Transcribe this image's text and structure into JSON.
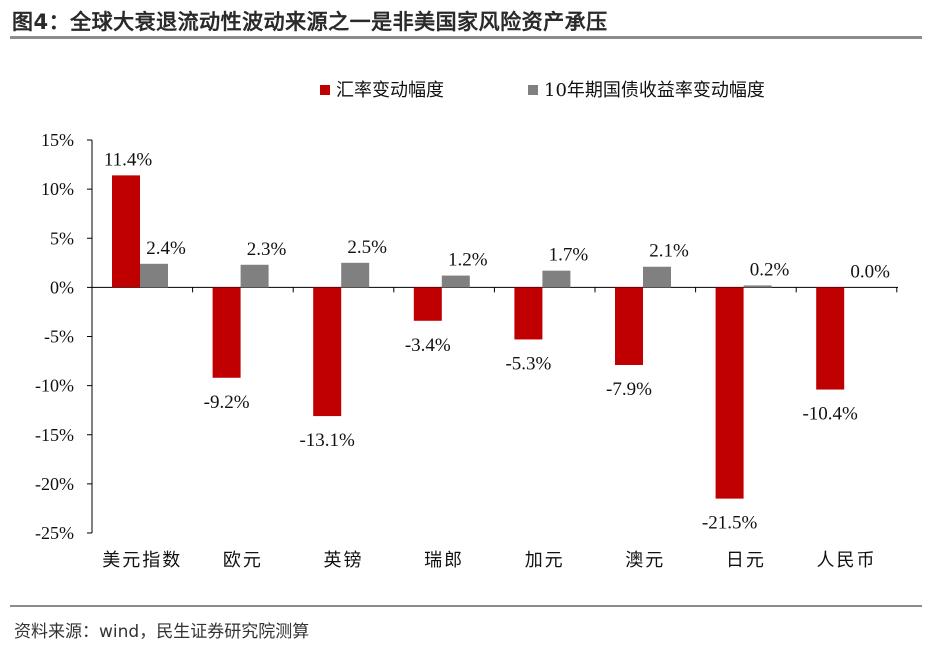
{
  "header": {
    "figure_title": "图4：全球大衰退流动性波动来源之一是非美国家风险资产承压"
  },
  "footer": {
    "source": "资料来源：wind，民生证券研究院测算"
  },
  "chart_data": {
    "type": "bar",
    "categories": [
      "美元指数",
      "欧元",
      "英镑",
      "瑞郎",
      "加元",
      "澳元",
      "日元",
      "人民币"
    ],
    "series": [
      {
        "name": "汇率变动幅度",
        "color": "#c00000",
        "values": [
          11.4,
          -9.2,
          -13.1,
          -3.4,
          -5.3,
          -7.9,
          -21.5,
          -10.4
        ],
        "labels": [
          "11.4%",
          "-9.2%",
          "-13.1%",
          "-3.4%",
          "-5.3%",
          "-7.9%",
          "-21.5%",
          "-10.4%"
        ]
      },
      {
        "name": "10年期国债收益率变动幅度",
        "color": "#808080",
        "values": [
          2.4,
          2.3,
          2.5,
          1.2,
          1.7,
          2.1,
          0.2,
          0.0
        ],
        "labels": [
          "2.4%",
          "2.3%",
          "2.5%",
          "1.2%",
          "1.7%",
          "2.1%",
          "0.2%",
          "0.0%"
        ]
      }
    ],
    "ylim": [
      -25,
      15
    ],
    "yticks": [
      15,
      10,
      5,
      0,
      -5,
      -10,
      -15,
      -20,
      -25
    ],
    "ytick_labels": [
      "15%",
      "10%",
      "5%",
      "0%",
      "-5%",
      "-10%",
      "-15%",
      "-20%",
      "-25%"
    ],
    "legend_position": "top",
    "grid": false
  }
}
